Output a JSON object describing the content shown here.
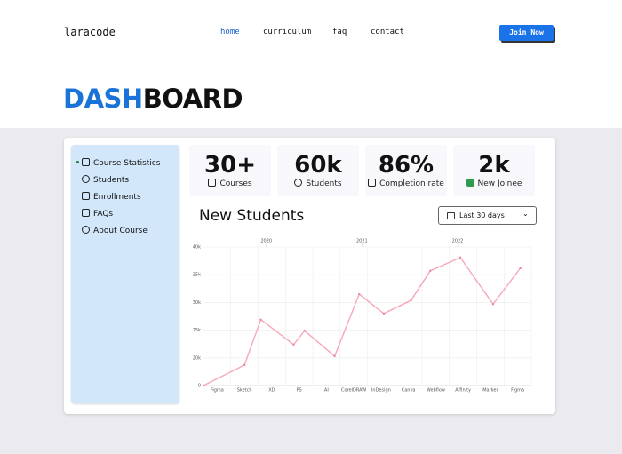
{
  "nav": {
    "logo": "laracode",
    "links": [
      "home",
      "curriculum",
      "faq",
      "contact"
    ],
    "button": "Join Now"
  },
  "header": {
    "title_accent": "DASH",
    "title_rest": "BOARD"
  },
  "sidebar": {
    "items": [
      "Course Statistics",
      "Students",
      "Enrollments",
      "FAQs",
      "About Course"
    ]
  },
  "stats": [
    {
      "value": "30+",
      "label": "Courses"
    },
    {
      "value": "60k",
      "label": "Students"
    },
    {
      "value": "86%",
      "label": "Completion rate"
    },
    {
      "value": "2k",
      "label": "New Joinee"
    }
  ],
  "panel": {
    "title": "New Students",
    "dropdown": "Last 30 days"
  },
  "chart_data": {
    "type": "line",
    "color": "#f7a8b8",
    "x": [
      -0.5,
      1.0,
      1.6,
      2.8,
      3.2,
      4.3,
      5.2,
      6.1,
      7.1,
      7.8,
      8.9,
      10.1,
      11.1
    ],
    "values": [
      15000,
      18700,
      26900,
      22400,
      24900,
      20300,
      31500,
      28000,
      30400,
      35700,
      38100,
      29700,
      36200
    ],
    "xlim": [
      -0.5,
      11.5
    ],
    "xticks": [
      {
        "value": 0,
        "label": "Figma"
      },
      {
        "value": 1,
        "label": "Sketch"
      },
      {
        "value": 2,
        "label": "XD"
      },
      {
        "value": 3,
        "label": "PS"
      },
      {
        "value": 4,
        "label": "AI"
      },
      {
        "value": 5,
        "label": "CorelDRAW"
      },
      {
        "value": 6,
        "label": "InDesign"
      },
      {
        "value": 7,
        "label": "Canva"
      },
      {
        "value": 8,
        "label": "Webflow"
      },
      {
        "value": 9,
        "label": "Affinity"
      },
      {
        "value": 10,
        "label": "Marker"
      },
      {
        "value": 11,
        "label": "Figma"
      }
    ],
    "x2ticks": [
      {
        "value": 1.8,
        "label": "2020"
      },
      {
        "value": 5.3,
        "label": "2021"
      },
      {
        "value": 8.8,
        "label": "2022"
      }
    ],
    "ylim": [
      15000,
      40000
    ],
    "yticks": [
      {
        "value": 20000,
        "label": "20k"
      },
      {
        "value": 25000,
        "label": "25k"
      },
      {
        "value": 30000,
        "label": "30k"
      },
      {
        "value": 35000,
        "label": "35k"
      },
      {
        "value": 40000,
        "label": "40k"
      }
    ],
    "y_bottom_label": "0",
    "grid": true
  }
}
